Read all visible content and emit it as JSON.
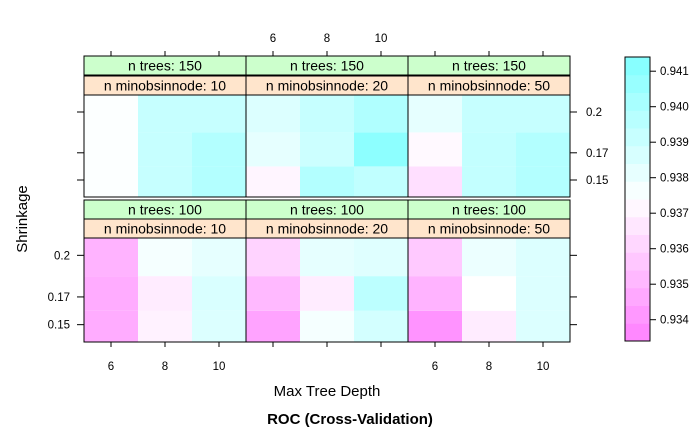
{
  "chart_data": {
    "type": "heatmap",
    "title": "ROC (Cross-Validation)",
    "xlabel": "Max Tree Depth",
    "ylabel": "Shrinkage",
    "x_categories": [
      6,
      8,
      10
    ],
    "x_tick_labels": [
      "6",
      "8",
      "10"
    ],
    "y_categories": [
      0.15,
      0.17,
      0.2
    ],
    "y_tick_labels": [
      "0.15",
      "0.17",
      "0.2"
    ],
    "strip_labels": {
      "trees_prefix": "n trees: ",
      "node_prefix": "n minobsinnode: "
    },
    "colorbar": {
      "min": 0.9334,
      "max": 0.9414,
      "ticks": [
        0.934,
        0.935,
        0.936,
        0.937,
        0.938,
        0.939,
        0.94,
        0.941
      ],
      "tick_labels": [
        "0.934",
        "0.935",
        "0.936",
        "0.937",
        "0.938",
        "0.939",
        "0.940",
        "0.941"
      ],
      "low_color": "#ff80ff",
      "high_color": "#80ffff"
    },
    "panels": [
      {
        "n_trees": 150,
        "n_minobsinnode": 10,
        "roc": [
          [
            0.9375,
            0.9392,
            0.9398
          ],
          [
            0.9375,
            0.9392,
            0.9398
          ],
          [
            0.9375,
            0.9392,
            0.9392
          ]
        ]
      },
      {
        "n_trees": 150,
        "n_minobsinnode": 20,
        "roc": [
          [
            0.9371,
            0.9398,
            0.9394
          ],
          [
            0.9382,
            0.939,
            0.941
          ],
          [
            0.9385,
            0.9392,
            0.9399
          ]
        ]
      },
      {
        "n_trees": 150,
        "n_minobsinnode": 50,
        "roc": [
          [
            0.9364,
            0.9393,
            0.9398
          ],
          [
            0.9372,
            0.9393,
            0.9398
          ],
          [
            0.9382,
            0.9392,
            0.9392
          ]
        ]
      },
      {
        "n_trees": 100,
        "n_minobsinnode": 10,
        "roc": [
          [
            0.9348,
            0.937,
            0.9385
          ],
          [
            0.9348,
            0.9368,
            0.9386
          ],
          [
            0.935,
            0.9377,
            0.9382
          ]
        ]
      },
      {
        "n_trees": 100,
        "n_minobsinnode": 20,
        "roc": [
          [
            0.9345,
            0.9377,
            0.9388
          ],
          [
            0.9352,
            0.9368,
            0.9395
          ],
          [
            0.936,
            0.9382,
            0.9384
          ]
        ]
      },
      {
        "n_trees": 100,
        "n_minobsinnode": 50,
        "roc": [
          [
            0.934,
            0.9368,
            0.9385
          ],
          [
            0.935,
            0.9374,
            0.9385
          ],
          [
            0.9357,
            0.938,
            0.9385
          ]
        ]
      }
    ]
  }
}
